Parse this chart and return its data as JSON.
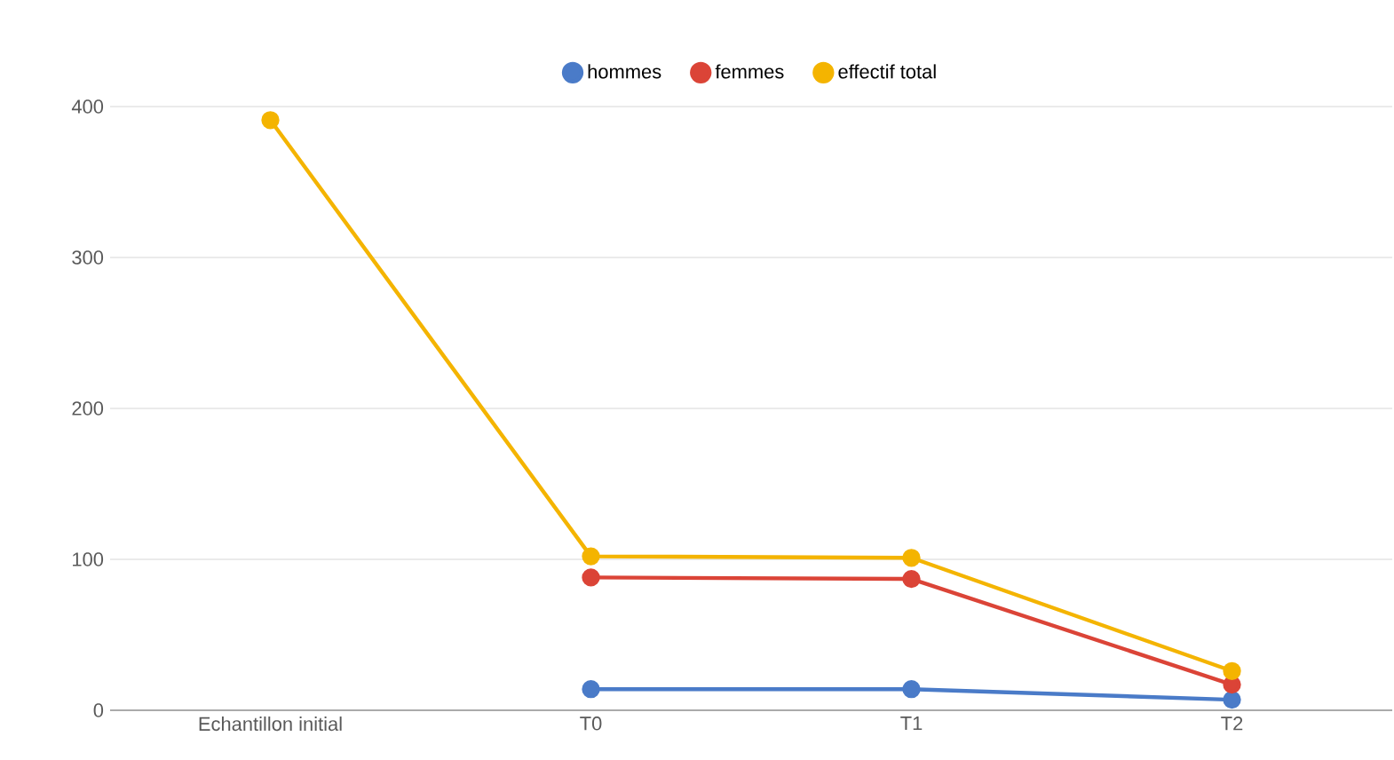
{
  "chart_data": {
    "type": "line",
    "categories": [
      "Echantillon initial",
      "T0",
      "T1",
      "T2"
    ],
    "series": [
      {
        "name": "hommes",
        "color": "#4a7bc8",
        "values": [
          null,
          14,
          14,
          7
        ]
      },
      {
        "name": "femmes",
        "color": "#db4437",
        "values": [
          null,
          88,
          87,
          17
        ]
      },
      {
        "name": "effectif total",
        "color": "#f4b400",
        "values": [
          391,
          102,
          101,
          26
        ]
      }
    ],
    "ylim": [
      0,
      400
    ],
    "yticks": [
      0,
      100,
      200,
      300,
      400
    ],
    "grid": "y",
    "legend": "top",
    "marker": "circle",
    "line_style": "solid"
  }
}
